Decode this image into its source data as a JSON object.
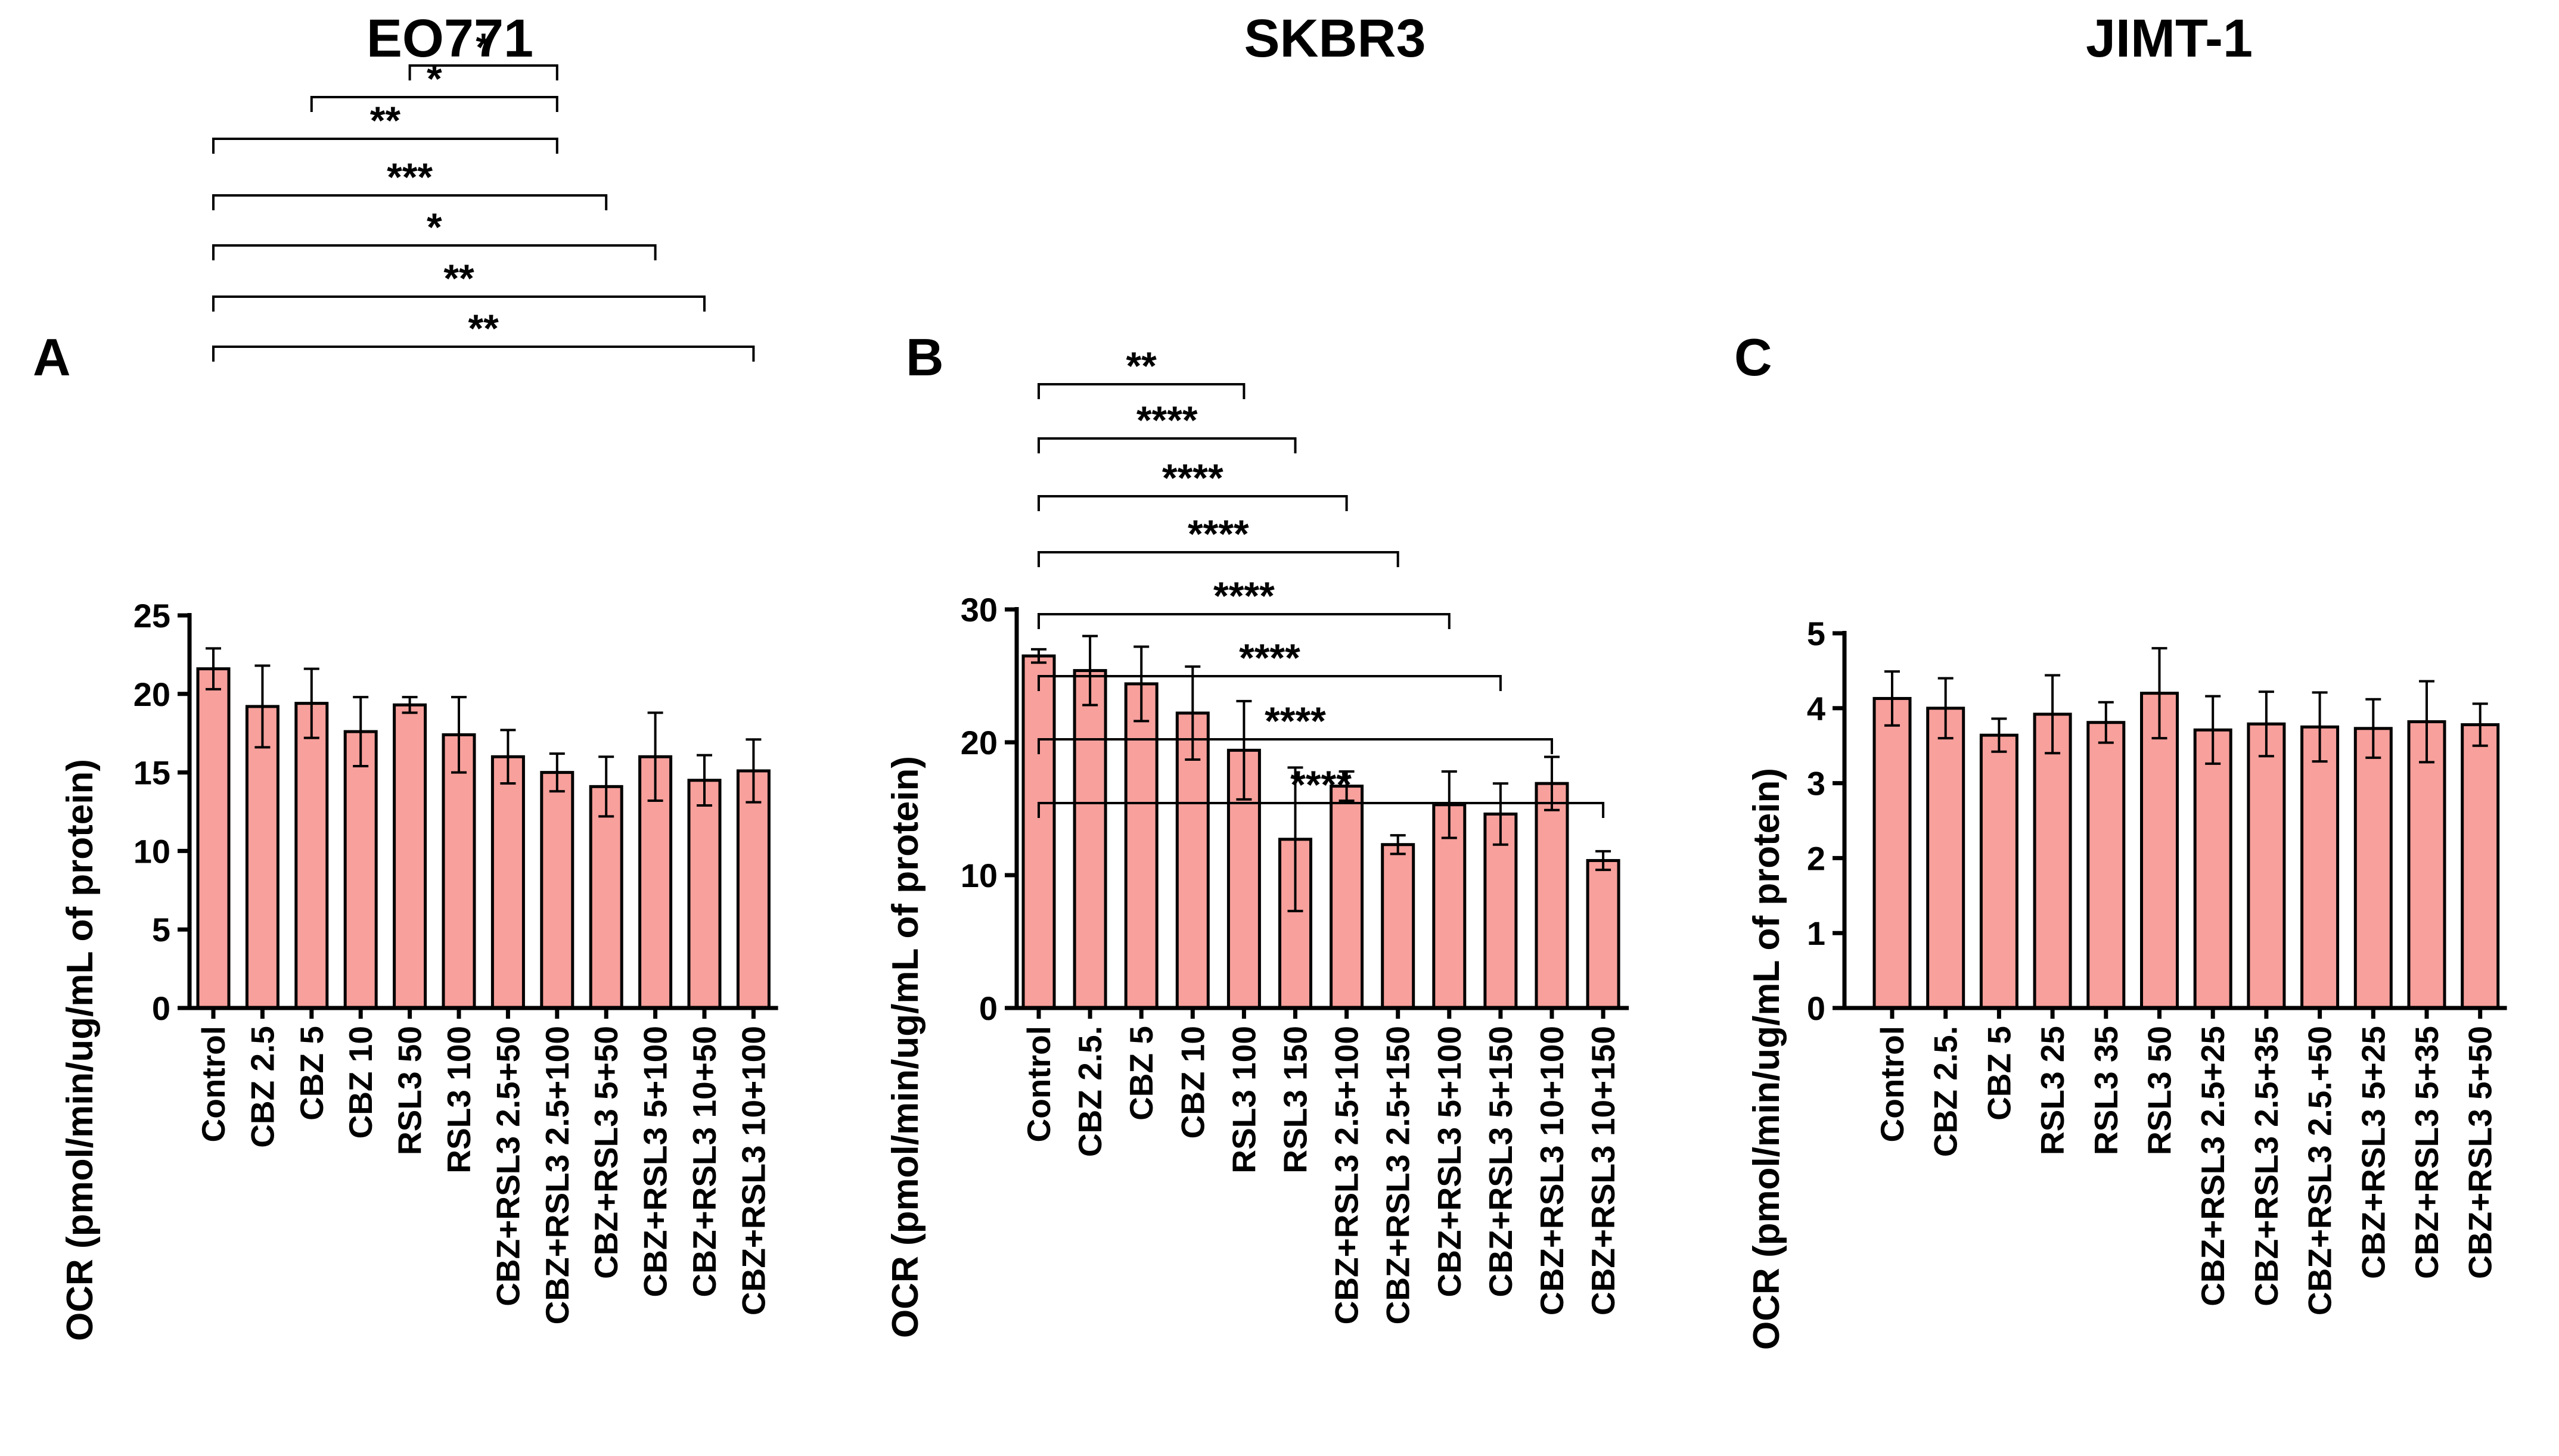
{
  "chart_data": [
    {
      "type": "bar",
      "panel": "A",
      "title": "EO771",
      "ylabel": "OCR (pmol/min/ug/mL of protein)",
      "ylim": [
        0,
        25
      ],
      "yticks": [
        0,
        5,
        10,
        15,
        20,
        25
      ],
      "categories": [
        "Control",
        "CBZ 2.5",
        "CBZ 5",
        "CBZ 10",
        "RSL3 50",
        "RSL3 100",
        "CBZ+RSL3 2.5+50",
        "CBZ+RSL3 2.5+100",
        "CBZ+RSL3 5+50",
        "CBZ+RSL3 5+100",
        "CBZ+RSL3 10+50",
        "CBZ+RSL3 10+100"
      ],
      "values": [
        21.6,
        19.2,
        19.4,
        17.6,
        19.3,
        17.4,
        16.0,
        15.0,
        14.1,
        16.0,
        14.5,
        15.1
      ],
      "errors": [
        1.3,
        2.6,
        2.2,
        2.2,
        0.5,
        2.4,
        1.7,
        1.2,
        1.9,
        2.8,
        1.6,
        2.0
      ],
      "comparisons": [
        {
          "from": 0,
          "to": 11,
          "label": "**"
        },
        {
          "from": 0,
          "to": 10,
          "label": "**"
        },
        {
          "from": 0,
          "to": 9,
          "label": "*"
        },
        {
          "from": 0,
          "to": 8,
          "label": "***"
        },
        {
          "from": 0,
          "to": 7,
          "label": "**"
        },
        {
          "from": 2,
          "to": 7,
          "label": "*"
        },
        {
          "from": 4,
          "to": 7,
          "label": "*"
        }
      ]
    },
    {
      "type": "bar",
      "panel": "B",
      "title": "SKBR3",
      "ylabel": "OCR (pmol/min/ug/mL of protein)",
      "ylim": [
        0,
        30
      ],
      "yticks": [
        0,
        10,
        20,
        30
      ],
      "categories": [
        "Control",
        "CBZ 2.5.",
        "CBZ 5",
        "CBZ 10",
        "RSL3 100",
        "RSL3 150",
        "CBZ+RSL3 2.5+100",
        "CBZ+RSL3 2.5+150",
        "CBZ+RSL3 5+100",
        "CBZ+RSL3 5+150",
        "CBZ+RSL3 10+100",
        "CBZ+RSL3 10+150"
      ],
      "values": [
        26.5,
        25.4,
        24.4,
        22.2,
        19.4,
        12.7,
        16.7,
        12.3,
        15.3,
        14.6,
        16.9,
        11.1
      ],
      "errors": [
        0.5,
        2.6,
        2.8,
        3.5,
        3.7,
        5.4,
        1.1,
        0.7,
        2.5,
        2.3,
        2.0,
        0.7
      ],
      "comparisons": [
        {
          "from": 0,
          "to": 11,
          "label": "****"
        },
        {
          "from": 0,
          "to": 10,
          "label": "****"
        },
        {
          "from": 0,
          "to": 9,
          "label": "****"
        },
        {
          "from": 0,
          "to": 8,
          "label": "****"
        },
        {
          "from": 0,
          "to": 7,
          "label": "****"
        },
        {
          "from": 0,
          "to": 6,
          "label": "****"
        },
        {
          "from": 0,
          "to": 5,
          "label": "****"
        },
        {
          "from": 0,
          "to": 4,
          "label": "**"
        }
      ]
    },
    {
      "type": "bar",
      "panel": "C",
      "title": "JIMT-1",
      "ylabel": "OCR (pmol/min/ug/mL of protein)",
      "ylim": [
        0,
        5
      ],
      "yticks": [
        0,
        1,
        2,
        3,
        4,
        5
      ],
      "categories": [
        "Control",
        "CBZ 2.5.",
        "CBZ 5",
        "RSL3 25",
        "RSL3 35",
        "RSL3 50",
        "CBZ+RSL3 2.5+25",
        "CBZ+RSL3 2.5+35",
        "CBZ+RSL3 2.5.+50",
        "CBZ+RSL3 5+25",
        "CBZ+RSL3 5+35",
        "CBZ+RSL3 5+50"
      ],
      "values": [
        4.13,
        4.0,
        3.64,
        3.92,
        3.81,
        4.2,
        3.71,
        3.79,
        3.75,
        3.73,
        3.82,
        3.78
      ],
      "errors": [
        0.36,
        0.4,
        0.22,
        0.52,
        0.27,
        0.6,
        0.45,
        0.43,
        0.46,
        0.39,
        0.54,
        0.28
      ],
      "comparisons": []
    }
  ]
}
